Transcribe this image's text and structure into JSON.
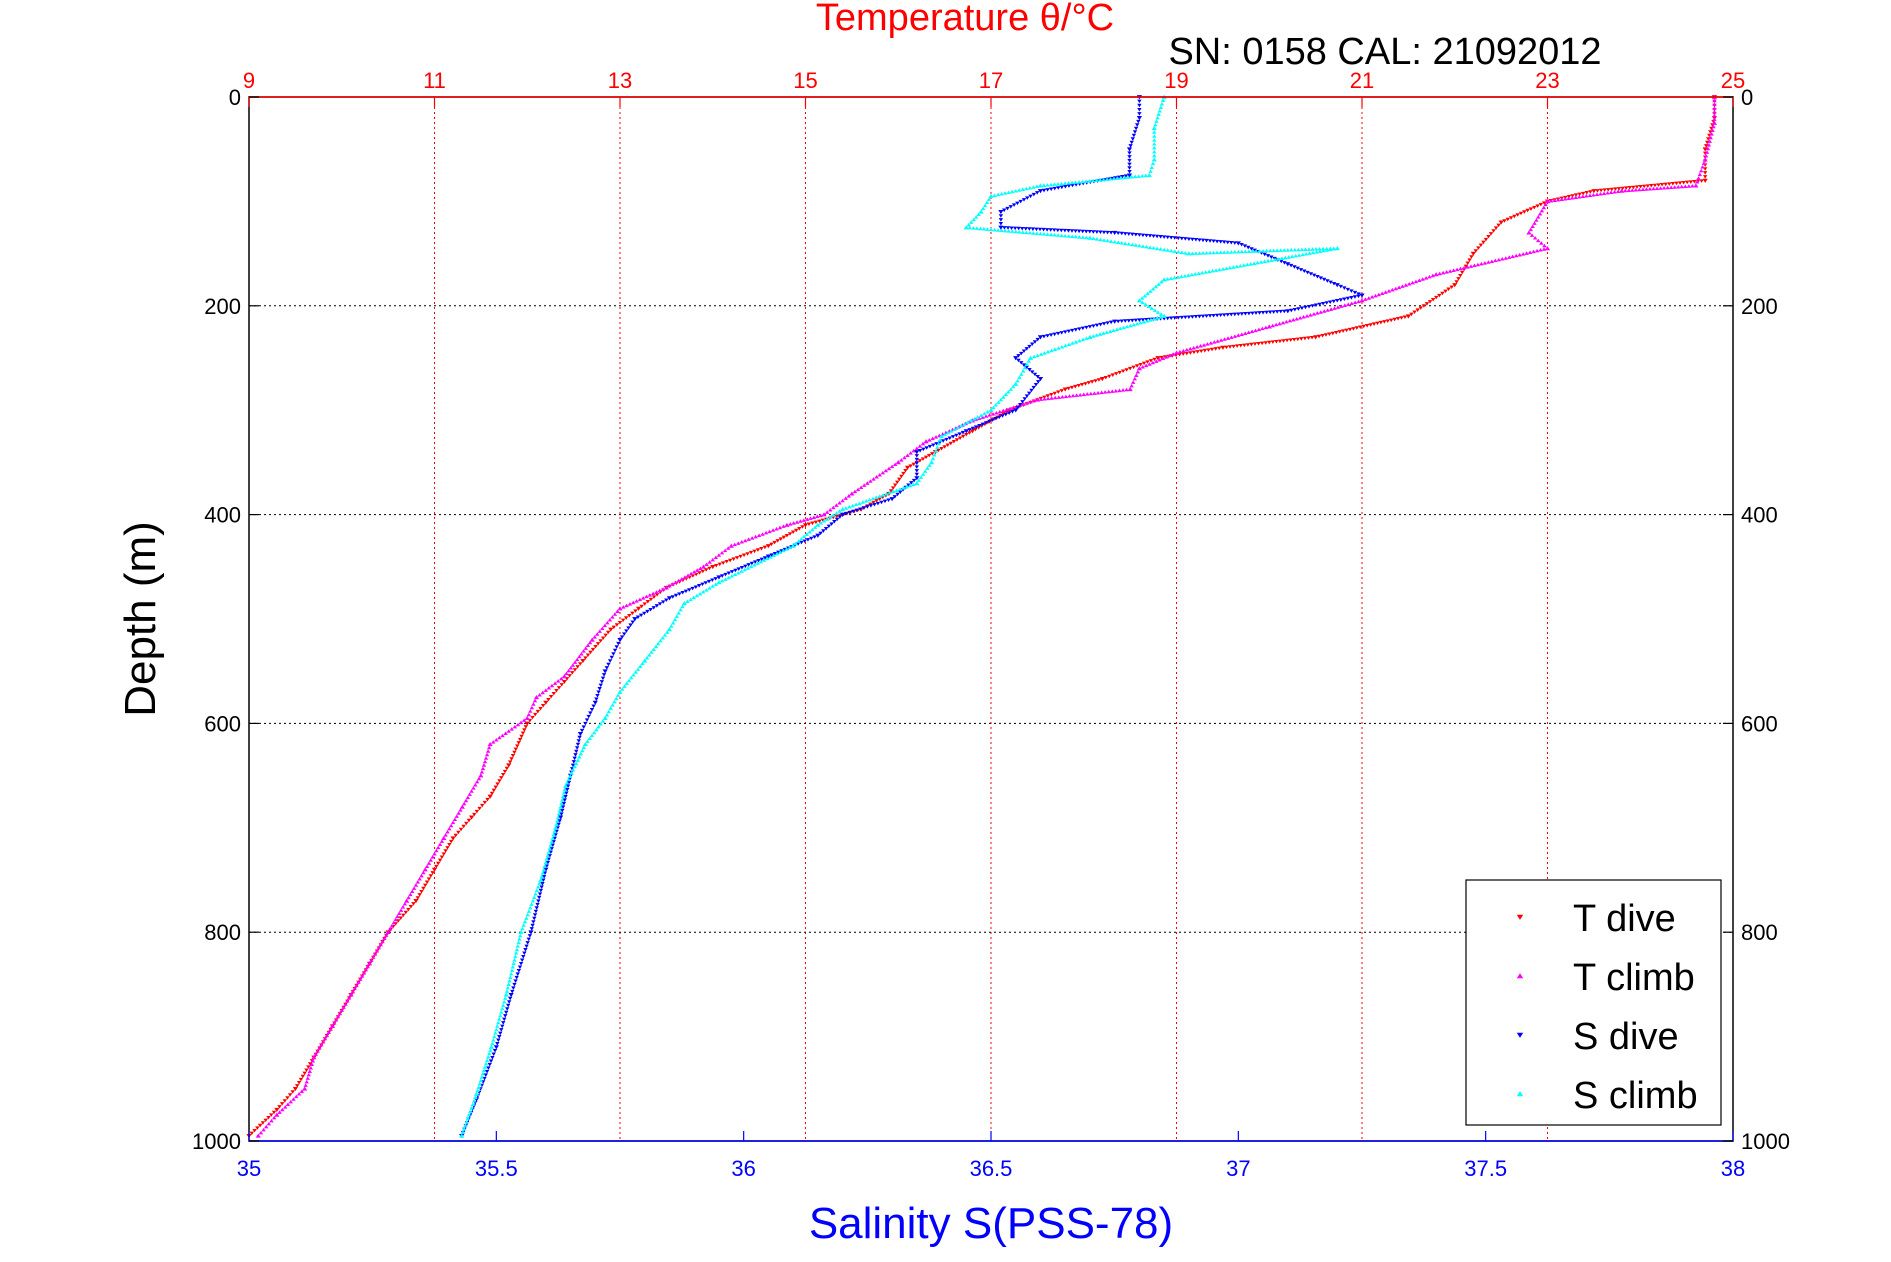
{
  "colors": {
    "t_dive": "#ff0000",
    "t_climb": "#ff00ff",
    "s_dive": "#0000ff",
    "s_climb": "#00ffff",
    "temperature_axis": "#ff0000",
    "salinity_axis": "#0000ff",
    "grid_depth": "#000000",
    "frame": "#000000"
  },
  "chart_data": {
    "type": "scatter",
    "title": "Temperature θ/°C",
    "subtitle": "SN: 0158  CAL: 21092012",
    "xlabel": "Salinity S(PSS-78)",
    "ylabel": "Depth (m)",
    "top_axis": {
      "label": "Temperature θ/°C",
      "range": [
        9,
        25
      ],
      "ticks": [
        9,
        11,
        13,
        15,
        17,
        19,
        21,
        23,
        25
      ],
      "tick_labels": [
        "9",
        "11",
        "13",
        "15",
        "17",
        "19",
        "21",
        "23",
        "25"
      ]
    },
    "bottom_axis": {
      "label": "Salinity S(PSS-78)",
      "range": [
        35,
        38
      ],
      "ticks": [
        35,
        35.5,
        36,
        36.5,
        37,
        37.5,
        38
      ],
      "tick_labels": [
        "35",
        "35.5",
        "36",
        "36.5",
        "37",
        "37.5",
        "38"
      ]
    },
    "y_axis": {
      "label": "Depth (m)",
      "range": [
        0,
        1000
      ],
      "reversed": true,
      "ticks": [
        0,
        200,
        400,
        600,
        800,
        1000
      ],
      "tick_labels": [
        "0",
        "200",
        "400",
        "600",
        "800",
        "1000"
      ]
    },
    "grid": "on",
    "legend_position": "bottom-right",
    "series": [
      {
        "name": "T dive",
        "axis": "temperature",
        "marker": "triangle-down",
        "points": [
          [
            24.8,
            0
          ],
          [
            24.8,
            20
          ],
          [
            24.7,
            50
          ],
          [
            24.7,
            80
          ],
          [
            23.5,
            90
          ],
          [
            23.0,
            100
          ],
          [
            22.5,
            120
          ],
          [
            22.2,
            150
          ],
          [
            22.0,
            180
          ],
          [
            21.5,
            210
          ],
          [
            20.5,
            230
          ],
          [
            19.5,
            240
          ],
          [
            18.8,
            250
          ],
          [
            18.2,
            270
          ],
          [
            17.8,
            280
          ],
          [
            17.2,
            300
          ],
          [
            16.8,
            320
          ],
          [
            16.4,
            340
          ],
          [
            16.1,
            355
          ],
          [
            15.9,
            380
          ],
          [
            15.6,
            395
          ],
          [
            15.0,
            410
          ],
          [
            14.6,
            430
          ],
          [
            14.0,
            450
          ],
          [
            13.5,
            470
          ],
          [
            13.2,
            490
          ],
          [
            12.9,
            510
          ],
          [
            12.6,
            540
          ],
          [
            12.4,
            560
          ],
          [
            12.2,
            580
          ],
          [
            12.0,
            600
          ],
          [
            11.8,
            640
          ],
          [
            11.6,
            670
          ],
          [
            11.4,
            690
          ],
          [
            11.2,
            710
          ],
          [
            11.0,
            740
          ],
          [
            10.8,
            770
          ],
          [
            10.5,
            800
          ],
          [
            10.3,
            830
          ],
          [
            10.1,
            860
          ],
          [
            9.9,
            890
          ],
          [
            9.7,
            920
          ],
          [
            9.5,
            950
          ],
          [
            9.3,
            970
          ],
          [
            9.0,
            995
          ]
        ]
      },
      {
        "name": "T climb",
        "axis": "temperature",
        "marker": "triangle-up",
        "points": [
          [
            24.8,
            0
          ],
          [
            24.8,
            25
          ],
          [
            24.7,
            60
          ],
          [
            24.6,
            85
          ],
          [
            23.8,
            90
          ],
          [
            23.0,
            100
          ],
          [
            22.8,
            130
          ],
          [
            23.0,
            145
          ],
          [
            21.8,
            170
          ],
          [
            21.0,
            195
          ],
          [
            20.0,
            220
          ],
          [
            19.0,
            245
          ],
          [
            18.6,
            260
          ],
          [
            18.5,
            280
          ],
          [
            17.5,
            290
          ],
          [
            16.8,
            310
          ],
          [
            16.3,
            330
          ],
          [
            16.0,
            350
          ],
          [
            15.5,
            380
          ],
          [
            15.2,
            400
          ],
          [
            14.8,
            410
          ],
          [
            14.2,
            430
          ],
          [
            13.9,
            450
          ],
          [
            13.5,
            470
          ],
          [
            13.0,
            490
          ],
          [
            12.7,
            520
          ],
          [
            12.4,
            555
          ],
          [
            12.1,
            575
          ],
          [
            12.0,
            595
          ],
          [
            11.6,
            620
          ],
          [
            11.5,
            650
          ],
          [
            11.3,
            680
          ],
          [
            11.1,
            710
          ],
          [
            10.9,
            740
          ],
          [
            10.7,
            770
          ],
          [
            10.5,
            800
          ],
          [
            10.3,
            830
          ],
          [
            10.1,
            860
          ],
          [
            9.9,
            890
          ],
          [
            9.7,
            920
          ],
          [
            9.6,
            950
          ],
          [
            9.3,
            975
          ],
          [
            9.1,
            995
          ]
        ]
      },
      {
        "name": "S dive",
        "axis": "salinity",
        "marker": "triangle-down",
        "points": [
          [
            36.8,
            0
          ],
          [
            36.8,
            20
          ],
          [
            36.78,
            50
          ],
          [
            36.78,
            75
          ],
          [
            36.6,
            90
          ],
          [
            36.52,
            110
          ],
          [
            36.52,
            125
          ],
          [
            36.75,
            130
          ],
          [
            37.0,
            140
          ],
          [
            37.1,
            160
          ],
          [
            37.2,
            180
          ],
          [
            37.25,
            190
          ],
          [
            37.1,
            205
          ],
          [
            36.75,
            215
          ],
          [
            36.6,
            230
          ],
          [
            36.55,
            250
          ],
          [
            36.6,
            270
          ],
          [
            36.55,
            300
          ],
          [
            36.45,
            320
          ],
          [
            36.35,
            340
          ],
          [
            36.35,
            365
          ],
          [
            36.3,
            385
          ],
          [
            36.2,
            400
          ],
          [
            36.15,
            420
          ],
          [
            36.05,
            440
          ],
          [
            35.95,
            460
          ],
          [
            35.85,
            480
          ],
          [
            35.78,
            500
          ],
          [
            35.75,
            520
          ],
          [
            35.72,
            550
          ],
          [
            35.7,
            580
          ],
          [
            35.67,
            610
          ],
          [
            35.65,
            650
          ],
          [
            35.63,
            690
          ],
          [
            35.6,
            740
          ],
          [
            35.57,
            800
          ],
          [
            35.53,
            860
          ],
          [
            35.5,
            910
          ],
          [
            35.46,
            960
          ],
          [
            35.43,
            995
          ]
        ]
      },
      {
        "name": "S climb",
        "axis": "salinity",
        "marker": "triangle-up",
        "points": [
          [
            36.85,
            0
          ],
          [
            36.83,
            30
          ],
          [
            36.83,
            60
          ],
          [
            36.82,
            75
          ],
          [
            36.6,
            85
          ],
          [
            36.5,
            95
          ],
          [
            36.48,
            110
          ],
          [
            36.45,
            125
          ],
          [
            36.7,
            135
          ],
          [
            36.9,
            150
          ],
          [
            37.2,
            145
          ],
          [
            36.85,
            175
          ],
          [
            36.8,
            195
          ],
          [
            36.85,
            210
          ],
          [
            36.7,
            230
          ],
          [
            36.58,
            250
          ],
          [
            36.55,
            275
          ],
          [
            36.5,
            300
          ],
          [
            36.4,
            325
          ],
          [
            36.38,
            350
          ],
          [
            36.35,
            370
          ],
          [
            36.2,
            395
          ],
          [
            36.15,
            410
          ],
          [
            36.1,
            430
          ],
          [
            35.95,
            465
          ],
          [
            35.88,
            485
          ],
          [
            35.85,
            510
          ],
          [
            35.8,
            540
          ],
          [
            35.75,
            570
          ],
          [
            35.72,
            595
          ],
          [
            35.68,
            620
          ],
          [
            35.64,
            660
          ],
          [
            35.62,
            700
          ],
          [
            35.59,
            750
          ],
          [
            35.55,
            800
          ],
          [
            35.52,
            860
          ],
          [
            35.49,
            910
          ],
          [
            35.46,
            955
          ],
          [
            35.43,
            995
          ]
        ]
      }
    ]
  }
}
